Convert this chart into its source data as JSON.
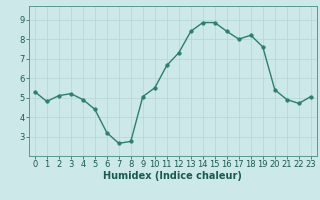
{
  "x": [
    0,
    1,
    2,
    3,
    4,
    5,
    6,
    7,
    8,
    9,
    10,
    11,
    12,
    13,
    14,
    15,
    16,
    17,
    18,
    19,
    20,
    21,
    22,
    23
  ],
  "y": [
    5.3,
    4.8,
    5.1,
    5.2,
    4.9,
    4.4,
    3.2,
    2.65,
    2.75,
    5.05,
    5.5,
    6.65,
    7.3,
    8.4,
    8.85,
    8.85,
    8.4,
    8.0,
    8.2,
    7.6,
    5.4,
    4.9,
    4.7,
    5.05
  ],
  "line_color": "#2e7d6e",
  "marker": "o",
  "markersize": 2.5,
  "linewidth": 1.0,
  "xlabel": "Humidex (Indice chaleur)",
  "xlim": [
    -0.5,
    23.5
  ],
  "ylim": [
    2.0,
    9.7
  ],
  "yticks": [
    3,
    4,
    5,
    6,
    7,
    8,
    9
  ],
  "xticks": [
    0,
    1,
    2,
    3,
    4,
    5,
    6,
    7,
    8,
    9,
    10,
    11,
    12,
    13,
    14,
    15,
    16,
    17,
    18,
    19,
    20,
    21,
    22,
    23
  ],
  "bg_color": "#cde8e8",
  "grid_color": "#b5d5d5",
  "axis_color": "#5a9a8a",
  "label_color": "#1a5a50",
  "xlabel_fontsize": 7,
  "tick_fontsize": 6
}
